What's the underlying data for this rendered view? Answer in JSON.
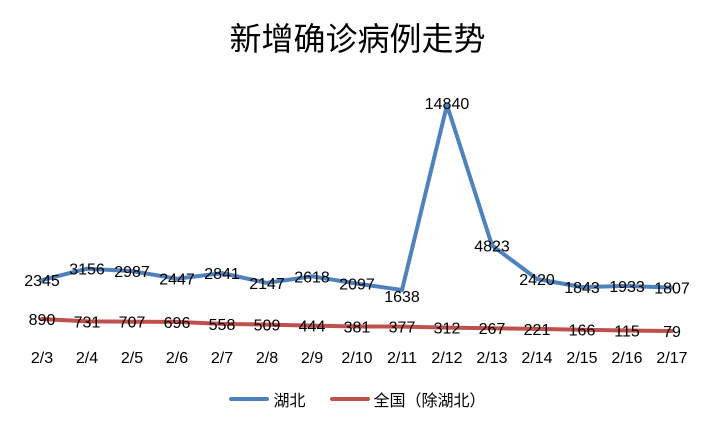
{
  "chart_data": {
    "type": "line",
    "title": "新增确诊病例走势",
    "xlabel": "",
    "ylabel": "",
    "grid": false,
    "legend_position": "bottom",
    "categories": [
      "2/3",
      "2/4",
      "2/5",
      "2/6",
      "2/7",
      "2/8",
      "2/9",
      "2/10",
      "2/11",
      "2/12",
      "2/13",
      "2/14",
      "2/15",
      "2/16",
      "2/17"
    ],
    "series": [
      {
        "name": "湖北",
        "color": "#4f81bd",
        "values": [
          2345,
          3156,
          2987,
          2447,
          2841,
          2147,
          2618,
          2097,
          1638,
          14840,
          4823,
          2420,
          1843,
          1933,
          1807
        ]
      },
      {
        "name": "全国（除湖北）",
        "color": "#c0504d",
        "values": [
          890,
          731,
          707,
          696,
          558,
          509,
          444,
          381,
          377,
          312,
          267,
          221,
          166,
          115,
          79
        ]
      }
    ]
  },
  "legend": {
    "items": [
      {
        "label": "湖北",
        "color": "#4f81bd"
      },
      {
        "label": "全国（除湖北）",
        "color": "#c0504d"
      }
    ]
  }
}
